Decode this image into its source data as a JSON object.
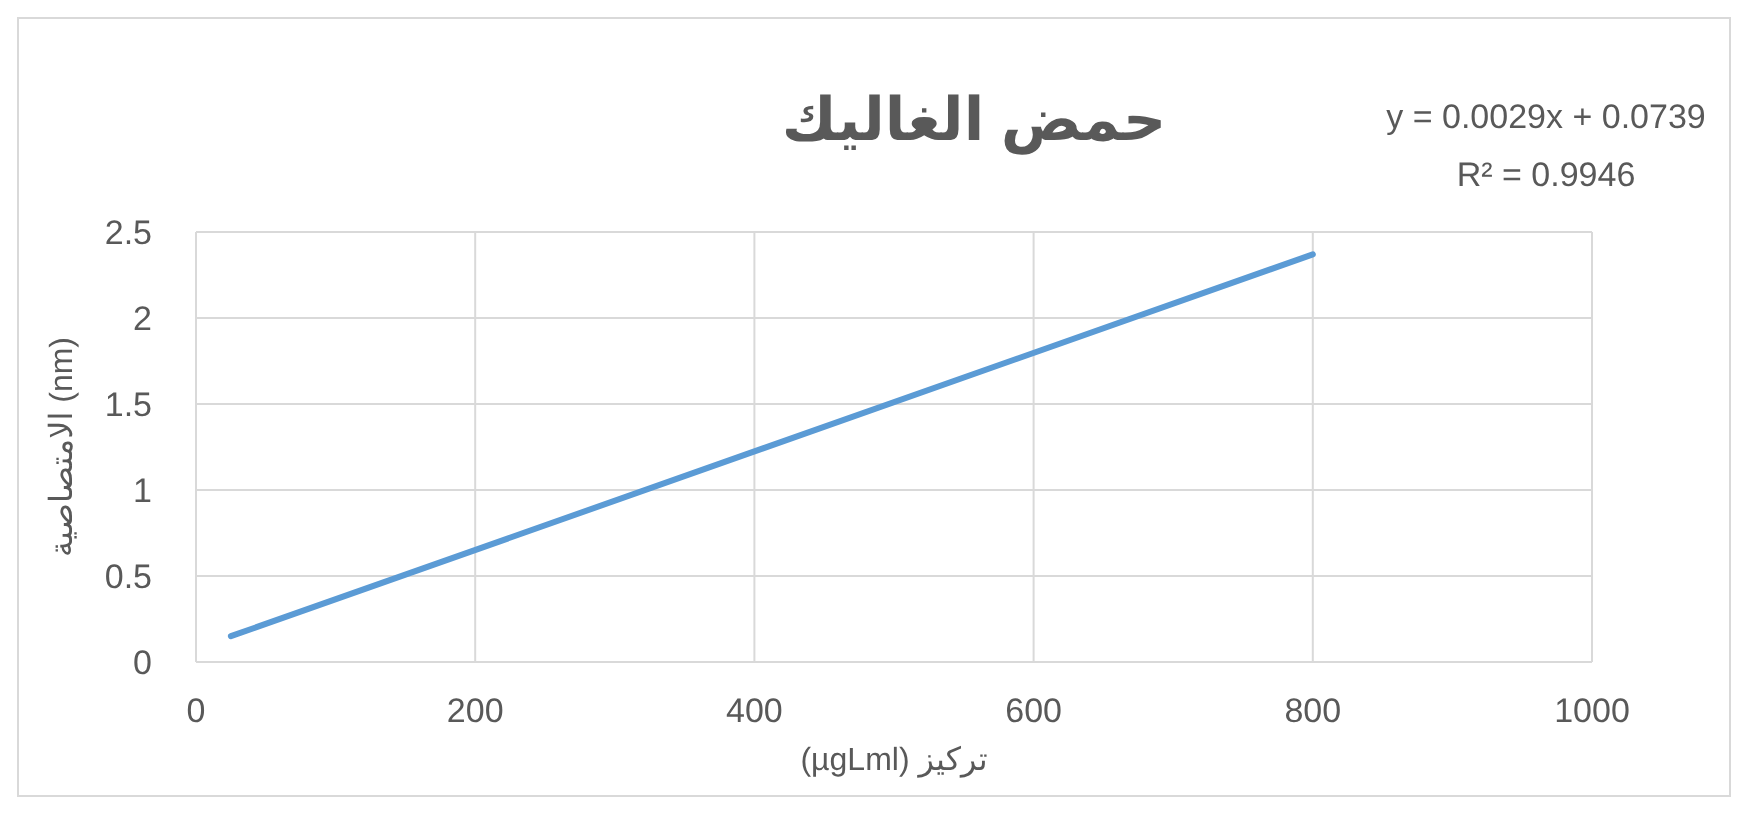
{
  "chart_data": {
    "type": "line",
    "title": "حمض الغاليك",
    "xlabel": "تركيز (µgLml)",
    "ylabel": "الامتصاصية (nm)",
    "annotations": [
      "y = 0.0029x + 0.0739",
      "R² = 0.9946"
    ],
    "x": [
      25,
      800
    ],
    "series": [
      {
        "color": "#5b9bd5",
        "values": [
          0.15,
          2.37
        ]
      }
    ],
    "xlim": [
      0,
      1000
    ],
    "xticks": [
      0,
      200,
      400,
      600,
      800,
      1000
    ],
    "ylim": [
      0,
      2.5
    ],
    "yticks": [
      0,
      0.5,
      1,
      1.5,
      2,
      2.5
    ],
    "grid": true,
    "marker": "none",
    "line_style": "solid"
  }
}
